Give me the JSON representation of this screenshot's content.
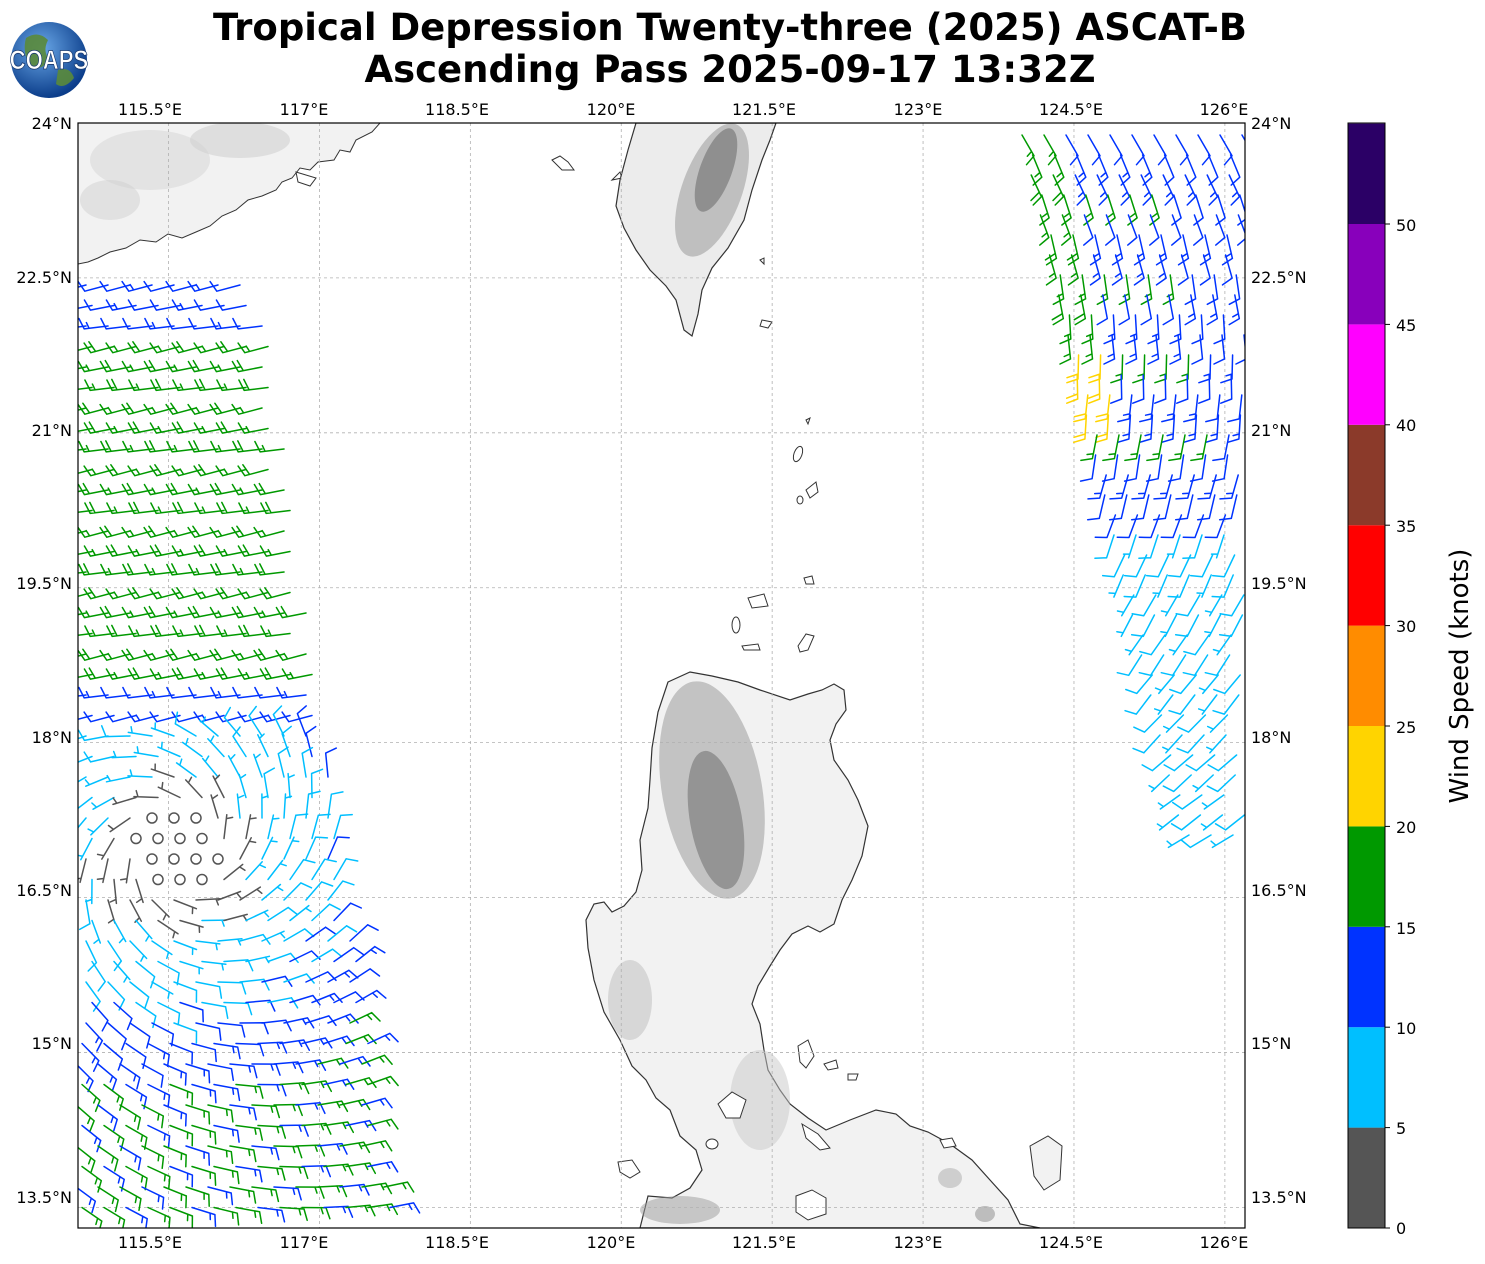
{
  "title": {
    "line1": "Tropical Depression Twenty-three (2025) ASCAT-B",
    "line2": "Ascending Pass 2025-09-17 13:32Z"
  },
  "logo": {
    "text": "COAPS",
    "icon": "globe-logo-icon"
  },
  "map": {
    "lon_range": [
      114.6,
      126.2
    ],
    "lat_range": [
      13.3,
      24.0
    ],
    "lon_ticks": [
      "115.5°E",
      "117°E",
      "118.5°E",
      "120°E",
      "121.5°E",
      "123°E",
      "124.5°E",
      "126°E"
    ],
    "lat_ticks": [
      "24°N",
      "22.5°N",
      "21°N",
      "19.5°N",
      "18°N",
      "16.5°N",
      "15°N",
      "13.5°N"
    ],
    "grid": true,
    "land_color": "#ffffff",
    "coast_color": "#333333"
  },
  "colorbar": {
    "title": "Wind Speed (knots)",
    "labels": [
      "0",
      "5",
      "10",
      "15",
      "20",
      "25",
      "30",
      "35",
      "40",
      "45",
      "50"
    ],
    "colors": [
      "#555555",
      "#00bfff",
      "#0033ff",
      "#009900",
      "#ffd400",
      "#ff8c00",
      "#ff0000",
      "#8b3a2a",
      "#ff00ff",
      "#8800bb",
      "#2b0066"
    ]
  }
}
